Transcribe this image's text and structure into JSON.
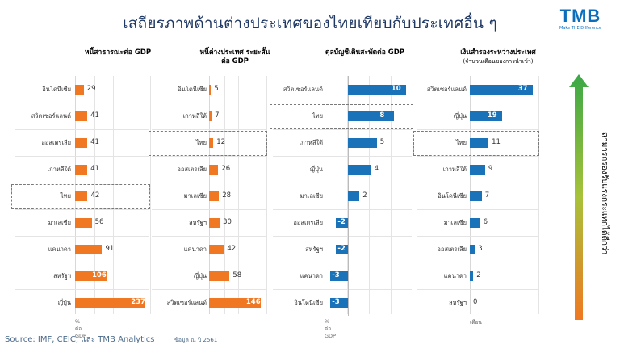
{
  "page": {
    "title": "เสถียรภาพด้านต่างประเทศของไทยเทียบกับประเทศอื่น ๆ",
    "source": "Source: IMF, CEIC, และ TMB Analytics",
    "note": "ข้อมูล ณ ปี 2561",
    "logo_text": "TMB",
    "logo_tagline": "Make THE Difference",
    "arrow_label": "สามารถรองรับแรงกระแทกได้ดีกว่า"
  },
  "colors": {
    "orange": "#f07822",
    "blue": "#1a73b8",
    "title": "#1f3864"
  },
  "chart_data": [
    {
      "type": "bar",
      "title": "หนี้สาธารณะต่อ GDP",
      "subtitle": "",
      "unit": "% ต่อ GDP",
      "color": "#f07822",
      "xlim": [
        0,
        250
      ],
      "highlight": "ไทย",
      "categories": [
        "อินโดนีเซีย",
        "สวิตเซอร์แลนด์",
        "ออสเตรเลีย",
        "เกาหลีใต้",
        "ไทย",
        "มาเลเซีย",
        "แคนาดา",
        "สหรัฐฯ",
        "ญี่ปุ่น"
      ],
      "values": [
        29,
        41,
        41,
        41,
        42,
        56,
        91,
        106,
        237
      ]
    },
    {
      "type": "bar",
      "title": "หนี้ต่างประเทศ ระยะสั้นต่อ GDP",
      "subtitle": "",
      "unit": "",
      "color": "#f07822",
      "xlim": [
        0,
        160
      ],
      "highlight": "ไทย",
      "categories": [
        "อินโดนีเซีย",
        "เกาหลีใต้",
        "ไทย",
        "ออสเตรเลีย",
        "มาเลเซีย",
        "สหรัฐฯ",
        "แคนาดา",
        "ญี่ปุ่น",
        "สวิตเซอร์แลนด์"
      ],
      "values": [
        5,
        7,
        12,
        26,
        28,
        30,
        42,
        58,
        146
      ]
    },
    {
      "type": "bar",
      "title": "ดุลบัญชีเดินสะพัดต่อ GDP",
      "subtitle": "",
      "unit": "% ต่อ GDP",
      "color": "#1a73b8",
      "xlim": [
        -4,
        11
      ],
      "highlight": "ไทย",
      "categories": [
        "สวิตเซอร์แลนด์",
        "ไทย",
        "เกาหลีใต้",
        "ญี่ปุ่น",
        "มาเลเซีย",
        "ออสเตรเลีย",
        "สหรัฐฯ",
        "แคนาดา",
        "อินโดนีเซีย"
      ],
      "values": [
        10,
        8,
        5,
        4,
        2,
        -2,
        -2,
        -3,
        -3
      ]
    },
    {
      "type": "bar",
      "title": "เงินสำรองระหว่างประเทศ",
      "subtitle": "(จำนวนเดือนของการนำเข้า)",
      "unit": "เดือน",
      "color": "#1a73b8",
      "xlim": [
        0,
        40
      ],
      "highlight": "ไทย",
      "categories": [
        "สวิตเซอร์แลนด์",
        "ญี่ปุ่น",
        "ไทย",
        "เกาหลีใต้",
        "อินโดนีเซีย",
        "มาเลเซีย",
        "ออสเตรเลีย",
        "แคนาดา",
        "สหรัฐฯ"
      ],
      "values": [
        37,
        19,
        11,
        9,
        7,
        6,
        3,
        2,
        0
      ]
    }
  ]
}
